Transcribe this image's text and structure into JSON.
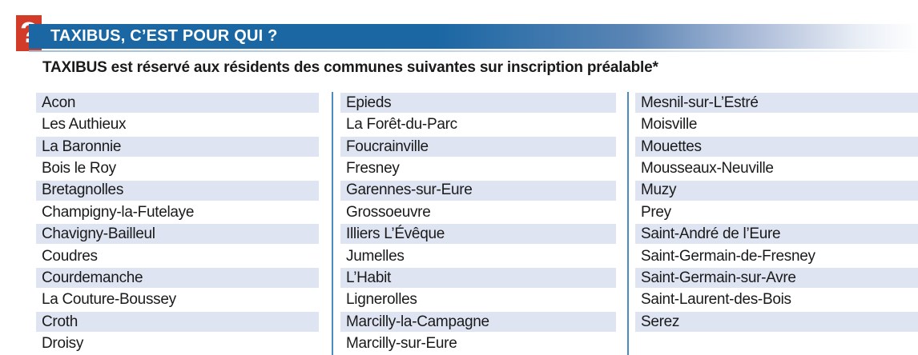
{
  "header": {
    "icon_glyph": "?",
    "title": "TAXIBUS, C’EST POUR QUI ?"
  },
  "intro_text": "TAXIBUS est réservé aux résidents des communes suivantes sur inscription préalable*",
  "colors": {
    "banner_blue": "#1B67A4",
    "badge_red": "#D23B28",
    "row_stripe_blue": "#DEE4F2",
    "divider_blue": "#4A8CC0",
    "underline_light_blue": "#9FC0DC",
    "text_black": "#1A1A1A"
  },
  "communes": {
    "columns": [
      {
        "items": [
          "Acon",
          "Les Authieux",
          "La Baronnie",
          "Bois le Roy",
          "Bretagnolles",
          "Champigny-la-Futelaye",
          "Chavigny-Bailleul",
          "Coudres",
          "Courdemanche",
          "La Couture-Boussey",
          "Croth",
          "Droisy"
        ]
      },
      {
        "items": [
          "Epieds",
          "La Forêt-du-Parc",
          "Foucrainville",
          "Fresney",
          "Garennes-sur-Eure",
          "Grossoeuvre",
          "Illiers L’Évêque",
          "Jumelles",
          "L’Habit",
          "Lignerolles",
          "Marcilly-la-Campagne",
          "Marcilly-sur-Eure"
        ]
      },
      {
        "items": [
          "Mesnil-sur-L’Estré",
          "Moisville",
          "Mouettes",
          "Mousseaux-Neuville",
          "Muzy",
          "Prey",
          "Saint-André de l’Eure",
          "Saint-Germain-de-Fresney",
          "Saint-Germain-sur-Avre",
          "Saint-Laurent-des-Bois",
          "Serez"
        ]
      }
    ]
  }
}
